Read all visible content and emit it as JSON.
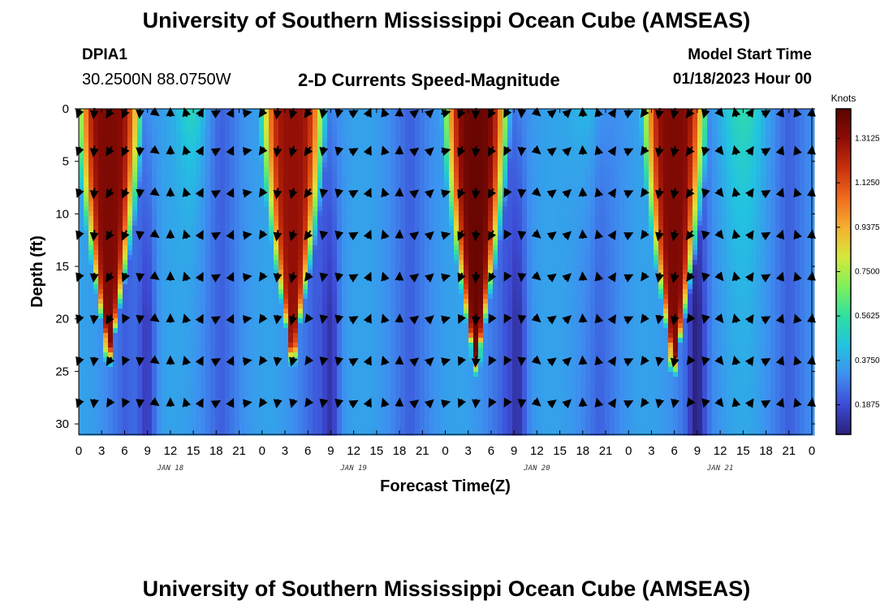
{
  "header": {
    "title": "University of Southern Mississippi Ocean Cube (AMSEAS)",
    "station_id": "DPIA1",
    "station_coords": "30.2500N  88.0750W",
    "plot_title": "2-D Currents Speed-Magnitude",
    "model_start_label": "Model Start Time",
    "model_start_value": "01/18/2023 Hour 00"
  },
  "footer": {
    "title": "University of Southern Mississippi Ocean Cube (AMSEAS)"
  },
  "chart_data": {
    "type": "heatmap",
    "title": "2-D Currents Speed-Magnitude",
    "xlabel": "Forecast Time(Z)",
    "ylabel": "Depth (ft)",
    "x_range_hours": [
      0,
      96
    ],
    "y_range_ft": [
      0,
      31
    ],
    "y_reversed": true,
    "x_tick_labels": [
      "0",
      "3",
      "6",
      "9",
      "12",
      "15",
      "18",
      "21",
      "0",
      "3",
      "6",
      "9",
      "12",
      "15",
      "18",
      "21",
      "0",
      "3",
      "6",
      "9",
      "12",
      "15",
      "18",
      "21",
      "0",
      "3",
      "6",
      "9",
      "12",
      "15",
      "18",
      "21",
      "0"
    ],
    "y_tick_values": [
      0,
      5,
      10,
      15,
      20,
      25,
      30
    ],
    "day_labels": [
      {
        "hour": 12,
        "text": "JAN 18"
      },
      {
        "hour": 36,
        "text": "JAN 19"
      },
      {
        "hour": 60,
        "text": "JAN 20"
      },
      {
        "hour": 84,
        "text": "JAN 21"
      }
    ],
    "colorbar": {
      "label": "Knots",
      "min": 0.0625,
      "max": 1.4375,
      "ticks": [
        "0.1875",
        "0.3750",
        "0.5625",
        "0.7500",
        "0.9375",
        "1.1250",
        "1.3125"
      ],
      "colors": [
        "#2a1f7a",
        "#3d4bd6",
        "#3e8ef0",
        "#22c3e0",
        "#2fe0a0",
        "#7ef05a",
        "#d6e83a",
        "#f5b030",
        "#ef6a1c",
        "#c8300c",
        "#8e0c06",
        "#5a0400"
      ]
    },
    "speed_peaks_knots": [
      {
        "center_hour": 4,
        "surface": 1.35,
        "depth_extent_ft": 22
      },
      {
        "center_hour": 28,
        "surface": 1.3,
        "depth_extent_ft": 22
      },
      {
        "center_hour": 52,
        "surface": 1.4,
        "depth_extent_ft": 23
      },
      {
        "center_hour": 78,
        "surface": 1.35,
        "depth_extent_ft": 23
      }
    ],
    "vector_depths_ft": [
      0,
      4,
      8,
      12,
      16,
      20,
      24,
      28
    ],
    "vector_direction_pattern_hours": [
      0,
      3,
      6,
      9,
      12,
      15,
      18,
      21
    ]
  }
}
